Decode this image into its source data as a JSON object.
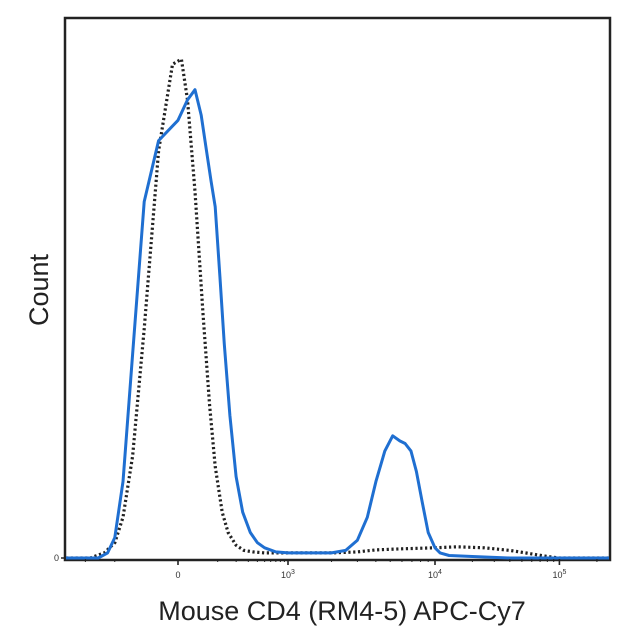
{
  "chart_data": {
    "type": "line",
    "title": "",
    "xlabel": "Mouse CD4 (RM4-5) APC-Cy7",
    "ylabel": "Count",
    "x_scale": "biexponential",
    "xlim": [
      -300,
      250000
    ],
    "ylim": [
      0,
      100
    ],
    "grid": false,
    "legend": "none",
    "x_ticks": [
      {
        "value": 0,
        "label": "0"
      },
      {
        "value": 1000,
        "label": "10^3"
      },
      {
        "value": 10000,
        "label": "10^4"
      },
      {
        "value": 100000,
        "label": "10^5"
      }
    ],
    "y_ticks": [
      {
        "value": 0,
        "label": "0"
      }
    ],
    "series": [
      {
        "style": "dotted",
        "color": "#222222",
        "points": [
          [
            -300,
            0
          ],
          [
            -180,
            0
          ],
          [
            -130,
            1
          ],
          [
            -100,
            3
          ],
          [
            -80,
            8
          ],
          [
            -60,
            20
          ],
          [
            -40,
            45
          ],
          [
            -20,
            80
          ],
          [
            -5,
            97
          ],
          [
            5,
            98
          ],
          [
            15,
            90
          ],
          [
            30,
            72
          ],
          [
            50,
            48
          ],
          [
            70,
            30
          ],
          [
            90,
            18
          ],
          [
            120,
            9
          ],
          [
            150,
            5
          ],
          [
            200,
            2.5
          ],
          [
            260,
            1.5
          ],
          [
            350,
            1.2
          ],
          [
            500,
            1
          ],
          [
            1000,
            1
          ],
          [
            2000,
            1
          ],
          [
            3000,
            1.2
          ],
          [
            4000,
            1.6
          ],
          [
            6000,
            1.8
          ],
          [
            10000,
            2
          ],
          [
            15000,
            2.2
          ],
          [
            25000,
            2
          ],
          [
            40000,
            1.5
          ],
          [
            60000,
            0.8
          ],
          [
            80000,
            0.3
          ],
          [
            100000,
            0
          ],
          [
            250000,
            0
          ]
        ]
      },
      {
        "style": "solid",
        "color": "#1f6fd1",
        "points": [
          [
            -300,
            0
          ],
          [
            -150,
            0
          ],
          [
            -120,
            1
          ],
          [
            -100,
            4
          ],
          [
            -80,
            15
          ],
          [
            -60,
            40
          ],
          [
            -40,
            70
          ],
          [
            -20,
            82
          ],
          [
            0,
            86
          ],
          [
            15,
            90
          ],
          [
            30,
            92
          ],
          [
            45,
            87
          ],
          [
            60,
            80
          ],
          [
            75,
            74
          ],
          [
            90,
            69
          ],
          [
            110,
            55
          ],
          [
            130,
            42
          ],
          [
            160,
            28
          ],
          [
            200,
            16
          ],
          [
            250,
            9
          ],
          [
            320,
            5
          ],
          [
            400,
            3
          ],
          [
            500,
            2
          ],
          [
            700,
            1.2
          ],
          [
            1000,
            1
          ],
          [
            2000,
            1
          ],
          [
            2500,
            1.5
          ],
          [
            3000,
            3.5
          ],
          [
            3500,
            8
          ],
          [
            4000,
            15
          ],
          [
            4600,
            21
          ],
          [
            5200,
            24
          ],
          [
            5800,
            23
          ],
          [
            6300,
            22.5
          ],
          [
            6900,
            21
          ],
          [
            7500,
            17
          ],
          [
            8200,
            11
          ],
          [
            9000,
            5
          ],
          [
            10000,
            2
          ],
          [
            11000,
            1
          ],
          [
            13000,
            0.5
          ],
          [
            20000,
            0.3
          ],
          [
            40000,
            0
          ],
          [
            250000,
            0
          ]
        ]
      }
    ]
  }
}
